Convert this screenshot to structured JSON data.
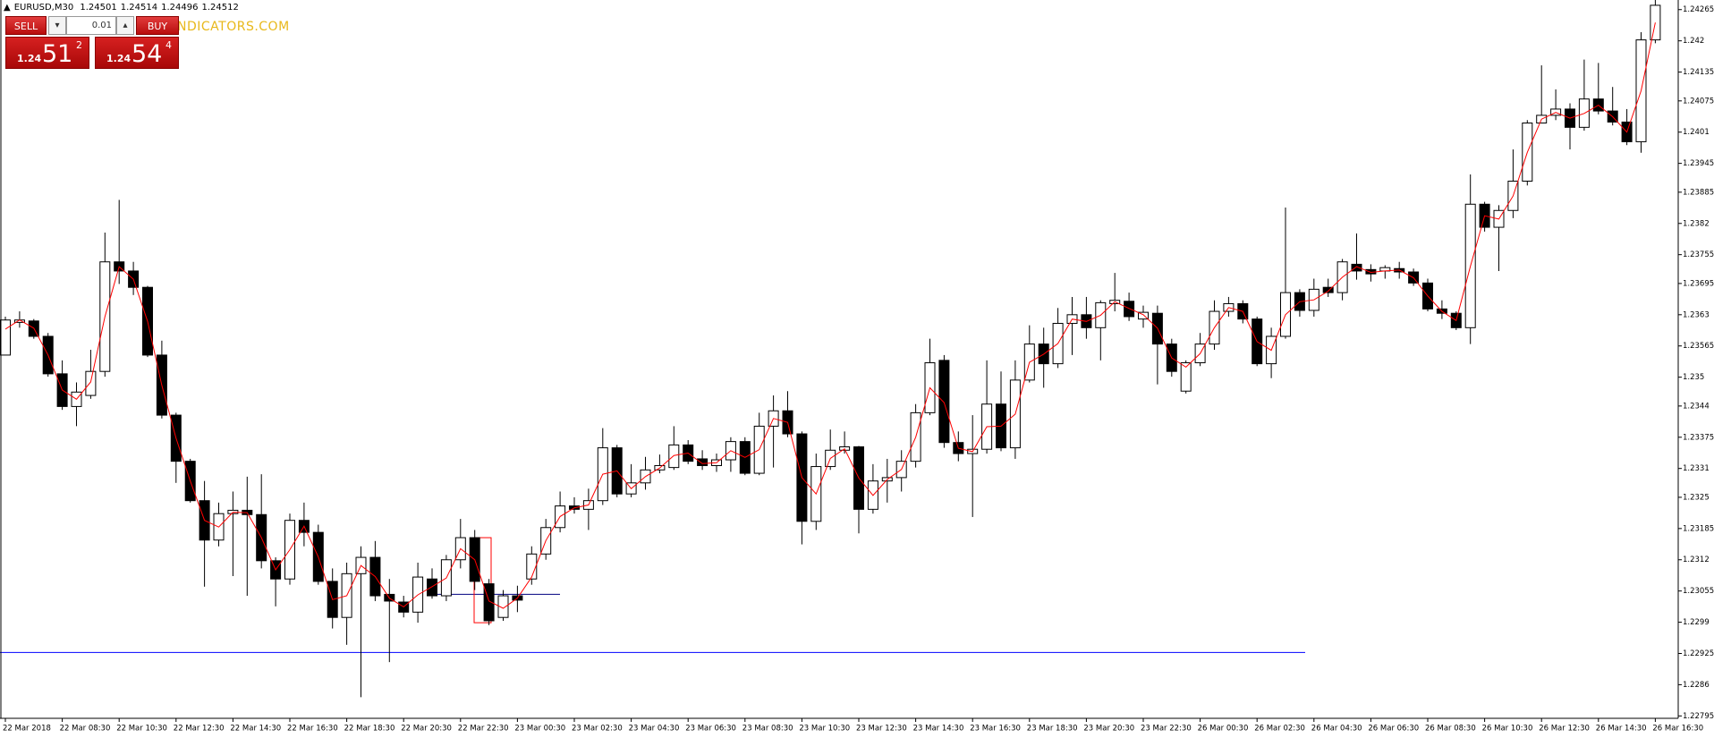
{
  "symbol": "EURUSD,M30",
  "quote": [
    1.24501,
    1.24514,
    1.24496,
    1.24512
  ],
  "watermark": "NDICATORS.COM",
  "trade_panel": {
    "sell": "SELL",
    "buy": "BUY",
    "lot": "0.01",
    "bid": {
      "big_figure": "1.24",
      "pips": "51",
      "fraction": "2"
    },
    "ask": {
      "big_figure": "1.24",
      "pips": "54",
      "fraction": "4"
    }
  },
  "chart_data": {
    "type": "candlestick",
    "x": [
      "22 Mar 2018",
      null,
      null,
      null,
      "22 Mar 08:30",
      null,
      null,
      null,
      "22 Mar 10:30",
      null,
      null,
      null,
      "22 Mar 12:30",
      null,
      null,
      null,
      "22 Mar 14:30",
      null,
      null,
      null,
      "22 Mar 16:30",
      null,
      null,
      null,
      "22 Mar 18:30",
      null,
      null,
      null,
      "22 Mar 20:30",
      null,
      null,
      null,
      "22 Mar 22:30",
      null,
      null,
      null,
      "23 Mar 00:30",
      null,
      null,
      null,
      "23 Mar 02:30",
      null,
      null,
      null,
      "23 Mar 04:30",
      null,
      null,
      null,
      "23 Mar 06:30",
      null,
      null,
      null,
      "23 Mar 08:30",
      null,
      null,
      null,
      "23 Mar 10:30",
      null,
      null,
      null,
      "23 Mar 12:30",
      null,
      null,
      null,
      "23 Mar 14:30",
      null,
      null,
      null,
      "23 Mar 16:30",
      null,
      null,
      null,
      "23 Mar 18:30",
      null,
      null,
      null,
      "23 Mar 20:30",
      null,
      null,
      null,
      "23 Mar 22:30",
      null,
      null,
      null,
      "26 Mar 00:30",
      null,
      null,
      null,
      "26 Mar 02:30",
      null,
      null,
      null,
      "26 Mar 04:30",
      null,
      null,
      null,
      "26 Mar 06:30",
      null,
      null,
      null,
      "26 Mar 08:30",
      null,
      null,
      null,
      "26 Mar 10:30",
      null,
      null,
      null,
      "26 Mar 12:30",
      null,
      null,
      null,
      "26 Mar 14:30",
      null,
      null,
      null,
      "26 Mar 16:30"
    ],
    "open": [
      1.23546,
      1.23614,
      1.23617,
      1.23585,
      1.23507,
      1.23439,
      1.23462,
      1.23512,
      1.2374,
      1.23721,
      1.23687,
      1.23546,
      1.23421,
      1.23325,
      1.23243,
      1.23161,
      1.23216,
      1.23223,
      1.23214,
      1.23118,
      1.2308,
      1.23202,
      1.23177,
      1.23075,
      1.23,
      1.23091,
      1.23125,
      1.23048,
      1.23032,
      1.23011,
      1.2308,
      1.23045,
      1.2312,
      1.23166,
      1.2307,
      1.23,
      1.23045,
      1.2308,
      1.23132,
      1.23187,
      1.23232,
      1.23225,
      1.23243,
      1.23353,
      1.23257,
      1.2328,
      1.23307,
      1.23312,
      1.23359,
      1.2333,
      1.23316,
      1.23328,
      1.23366,
      1.233,
      1.23398,
      1.2343,
      1.23382,
      1.232,
      1.23314,
      1.23348,
      1.23355,
      1.23225,
      1.23284,
      1.23291,
      1.23325,
      1.23426,
      1.23535,
      1.23364,
      1.23341,
      1.2335,
      1.23444,
      1.23353,
      1.23494,
      1.23569,
      1.23528,
      1.23612,
      1.2363,
      1.23603,
      1.23653,
      1.23658,
      1.23621,
      1.23633,
      1.23569,
      1.23471,
      1.2353,
      1.23569,
      1.23637,
      1.23653,
      1.23621,
      1.23528,
      1.23585,
      1.23676,
      1.23639,
      1.23687,
      1.23676,
      1.23735,
      1.23724,
      1.23721,
      1.23726,
      1.23719,
      1.23696,
      1.23642,
      1.23633,
      1.23603,
      1.2386,
      1.23812,
      1.23847,
      1.23908,
      1.24029,
      1.24045,
      1.24058,
      1.2402,
      1.24079,
      1.24054,
      1.24031,
      1.2399,
      1.24202
    ],
    "high": [
      1.23626,
      1.23637,
      1.23621,
      1.23592,
      1.23535,
      1.23489,
      1.23557,
      1.23801,
      1.23869,
      1.2374,
      1.2369,
      1.23576,
      1.23426,
      1.2333,
      1.23284,
      1.23239,
      1.23262,
      1.23293,
      1.23298,
      1.23125,
      1.23216,
      1.23239,
      1.23193,
      1.23102,
      1.23114,
      1.23148,
      1.23159,
      1.2308,
      1.23045,
      1.23114,
      1.23102,
      1.2313,
      1.23205,
      1.23182,
      1.2308,
      1.23057,
      1.23066,
      1.23148,
      1.23205,
      1.23262,
      1.2325,
      1.23268,
      1.23394,
      1.23359,
      1.23319,
      1.23334,
      1.23339,
      1.23398,
      1.23369,
      1.23348,
      1.23341,
      1.23375,
      1.23375,
      1.23426,
      1.23462,
      1.23471,
      1.23387,
      1.23341,
      1.23391,
      1.23387,
      1.23357,
      1.23319,
      1.2333,
      1.23348,
      1.23444,
      1.2358,
      1.23546,
      1.23387,
      1.23421,
      1.23535,
      1.23512,
      1.23535,
      1.23608,
      1.23603,
      1.23644,
      1.23667,
      1.23667,
      1.2366,
      1.23717,
      1.23676,
      1.23649,
      1.23649,
      1.2358,
      1.23535,
      1.23592,
      1.2366,
      1.23667,
      1.2366,
      1.23626,
      1.23603,
      1.23853,
      1.23683,
      1.23705,
      1.23705,
      1.23746,
      1.23799,
      1.23735,
      1.23733,
      1.2374,
      1.23726,
      1.23705,
      1.2366,
      1.23637,
      1.23922,
      1.23865,
      1.23858,
      1.23974,
      1.24035,
      1.24149,
      1.24099,
      1.2407,
      1.24161,
      1.24154,
      1.24104,
      1.24058,
      1.24218,
      1.24286
    ],
    "low": [
      1.23546,
      1.23603,
      1.2358,
      1.23501,
      1.23432,
      1.23398,
      1.23455,
      1.23501,
      1.23694,
      1.23671,
      1.23542,
      1.23414,
      1.2328,
      1.23239,
      1.23064,
      1.23148,
      1.23086,
      1.23045,
      1.23102,
      1.23023,
      1.23068,
      1.23148,
      1.23068,
      1.22977,
      1.22943,
      1.22834,
      1.23034,
      1.22907,
      1.23,
      1.22989,
      1.23039,
      1.23034,
      1.23102,
      1.23057,
      1.22984,
      1.22993,
      1.23011,
      1.23068,
      1.2312,
      1.23177,
      1.23216,
      1.23182,
      1.23234,
      1.2325,
      1.2325,
      1.23266,
      1.233,
      1.23307,
      1.23319,
      1.23307,
      1.23303,
      1.23303,
      1.23296,
      1.23296,
      1.23312,
      1.23375,
      1.23152,
      1.23182,
      1.23307,
      1.23341,
      1.23175,
      1.23216,
      1.23239,
      1.23262,
      1.23312,
      1.23421,
      1.23353,
      1.23325,
      1.23209,
      1.23341,
      1.23346,
      1.2333,
      1.23489,
      1.23478,
      1.23519,
      1.23546,
      1.2358,
      1.23535,
      1.23637,
      1.23617,
      1.23603,
      1.23485,
      1.23501,
      1.23466,
      1.23523,
      1.23557,
      1.23626,
      1.23612,
      1.23523,
      1.23498,
      1.2358,
      1.23626,
      1.23626,
      1.23667,
      1.2366,
      1.23703,
      1.23699,
      1.23705,
      1.23705,
      1.2369,
      1.23637,
      1.23621,
      1.23598,
      1.23569,
      1.23803,
      1.23721,
      1.23831,
      1.23899,
      1.24029,
      1.24035,
      1.23974,
      1.24013,
      1.24047,
      1.24024,
      1.23983,
      1.23967,
      1.24195
    ],
    "close": [
      1.23619,
      1.23619,
      1.23585,
      1.23507,
      1.23439,
      1.23469,
      1.23512,
      1.2374,
      1.23721,
      1.23687,
      1.23546,
      1.23421,
      1.23325,
      1.23243,
      1.23161,
      1.23216,
      1.23223,
      1.23214,
      1.23118,
      1.2308,
      1.23202,
      1.23177,
      1.23075,
      1.23,
      1.23091,
      1.23125,
      1.23045,
      1.23034,
      1.23011,
      1.23084,
      1.23045,
      1.2312,
      1.23166,
      1.23075,
      1.22993,
      1.23045,
      1.23036,
      1.23132,
      1.23187,
      1.23232,
      1.23225,
      1.23243,
      1.23353,
      1.23257,
      1.2328,
      1.23307,
      1.23316,
      1.23359,
      1.23325,
      1.23316,
      1.23328,
      1.23366,
      1.233,
      1.23398,
      1.2343,
      1.23382,
      1.232,
      1.23314,
      1.23348,
      1.23355,
      1.23225,
      1.23284,
      1.23291,
      1.23325,
      1.23426,
      1.2353,
      1.23364,
      1.23341,
      1.2335,
      1.23444,
      1.23353,
      1.23494,
      1.23569,
      1.23528,
      1.23612,
      1.2363,
      1.23603,
      1.23655,
      1.2366,
      1.23626,
      1.23635,
      1.23569,
      1.23512,
      1.2353,
      1.23569,
      1.23637,
      1.23653,
      1.23621,
      1.23528,
      1.23585,
      1.23676,
      1.23639,
      1.23683,
      1.23676,
      1.2374,
      1.23721,
      1.23715,
      1.23728,
      1.23719,
      1.23696,
      1.23642,
      1.23633,
      1.23603,
      1.2386,
      1.23812,
      1.23847,
      1.23908,
      1.24029,
      1.24045,
      1.24058,
      1.2402,
      1.24079,
      1.24054,
      1.24031,
      1.2399,
      1.24202,
      1.24274
    ],
    "ma": {
      "color": "#ff0000",
      "values": [
        1.236,
        1.23619,
        1.23602,
        1.23546,
        1.23473,
        1.23454,
        1.2349,
        1.23626,
        1.2373,
        1.23704,
        1.23616,
        1.23483,
        1.23373,
        1.23284,
        1.23202,
        1.23188,
        1.23219,
        1.23218,
        1.23166,
        1.23099,
        1.23141,
        1.2319,
        1.23126,
        1.23037,
        1.23045,
        1.23108,
        1.23085,
        1.2304,
        1.23022,
        1.23047,
        1.23064,
        1.23082,
        1.23143,
        1.2312,
        1.23034,
        1.23019,
        1.2304,
        1.23084,
        1.2316,
        1.2321,
        1.23228,
        1.23234,
        1.23298,
        1.23305,
        1.23268,
        1.23293,
        1.23311,
        1.23337,
        1.23342,
        1.2332,
        1.23322,
        1.23347,
        1.23333,
        1.23349,
        1.23414,
        1.23406,
        1.23291,
        1.23257,
        1.23331,
        1.23351,
        1.2329,
        1.23254,
        1.23287,
        1.23308,
        1.23375,
        1.23478,
        1.23447,
        1.23352,
        1.23345,
        1.23397,
        1.23398,
        1.23423,
        1.23531,
        1.23548,
        1.2357,
        1.23621,
        1.23616,
        1.23629,
        1.23657,
        1.23643,
        1.2363,
        1.23602,
        1.2354,
        1.23521,
        1.23549,
        1.23603,
        1.23645,
        1.23637,
        1.23574,
        1.23556,
        1.2363,
        1.23657,
        1.23661,
        1.23679,
        1.23708,
        1.2373,
        1.23718,
        1.23721,
        1.23723,
        1.23707,
        1.23669,
        1.23637,
        1.23618,
        1.23731,
        1.23836,
        1.23829,
        1.23877,
        1.23968,
        1.24037,
        1.24051,
        1.24039,
        1.24049,
        1.24066,
        1.24042,
        1.2401,
        1.24096,
        1.24238
      ]
    },
    "up_color": "#ffffff",
    "down_color": "#000000",
    "outline_color": "#000000",
    "levels": [
      {
        "value": 1.22927,
        "color": "#0000ff"
      },
      {
        "value": 1.23048,
        "color": "#000080"
      }
    ],
    "rectangle": {
      "high": 1.23166,
      "low": 1.22989,
      "color": "#ff0000"
    },
    "ylim": [
      1.2279,
      1.24285
    ],
    "yticks": [
      1.24265,
      1.242,
      1.24135,
      1.24075,
      1.2401,
      1.23945,
      1.23885,
      1.2382,
      1.23755,
      1.23695,
      1.2363,
      1.23565,
      1.235,
      1.2344,
      1.23375,
      1.2331,
      1.2325,
      1.23185,
      1.2312,
      1.23055,
      1.2299,
      1.22925,
      1.2286,
      1.22795
    ],
    "grid": false
  }
}
